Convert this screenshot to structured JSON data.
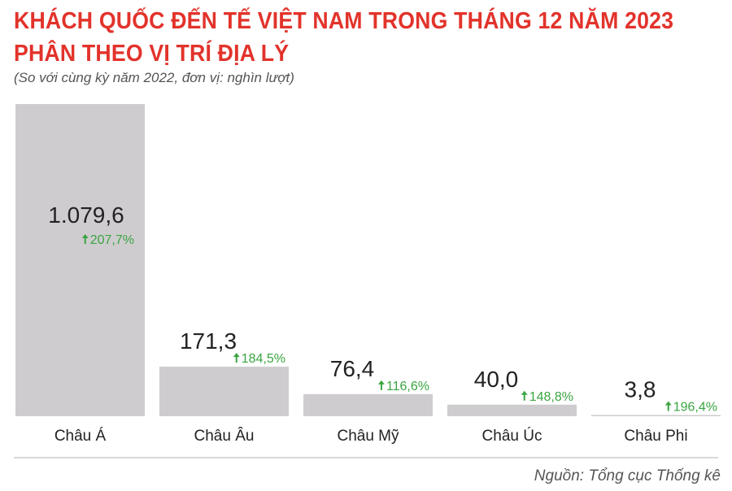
{
  "chart_data": {
    "type": "bar",
    "title": "KHÁCH QUỐC ĐẾN TẾ VIỆT NAM TRONG THÁNG 12 NĂM 2023",
    "title_line2": "PHÂN THEO VỊ TRÍ ĐỊA LÝ",
    "subtitle": "(So với cùng kỳ năm 2022, đơn vị: nghìn lượt)",
    "categories": [
      "Châu Á",
      "Châu Âu",
      "Châu Mỹ",
      "Châu Úc",
      "Châu Phi"
    ],
    "values": [
      1079.6,
      171.3,
      76.4,
      40.0,
      3.8
    ],
    "value_labels": [
      "1.079,6",
      "171,3",
      "76,4",
      "40,0",
      "3,8"
    ],
    "change_labels": [
      "207,7%",
      "184,5%",
      "116,6%",
      "148,8%",
      "196,4%"
    ],
    "change_icon": "arrow-up-icon",
    "ylim": [
      0,
      1079.6
    ],
    "grid": false,
    "source": "Nguồn: Tổng cục Thống kê",
    "colors": {
      "title": "#e2332b",
      "bar": "#cfcccf",
      "change": "#3aa541",
      "text": "#222222"
    }
  }
}
